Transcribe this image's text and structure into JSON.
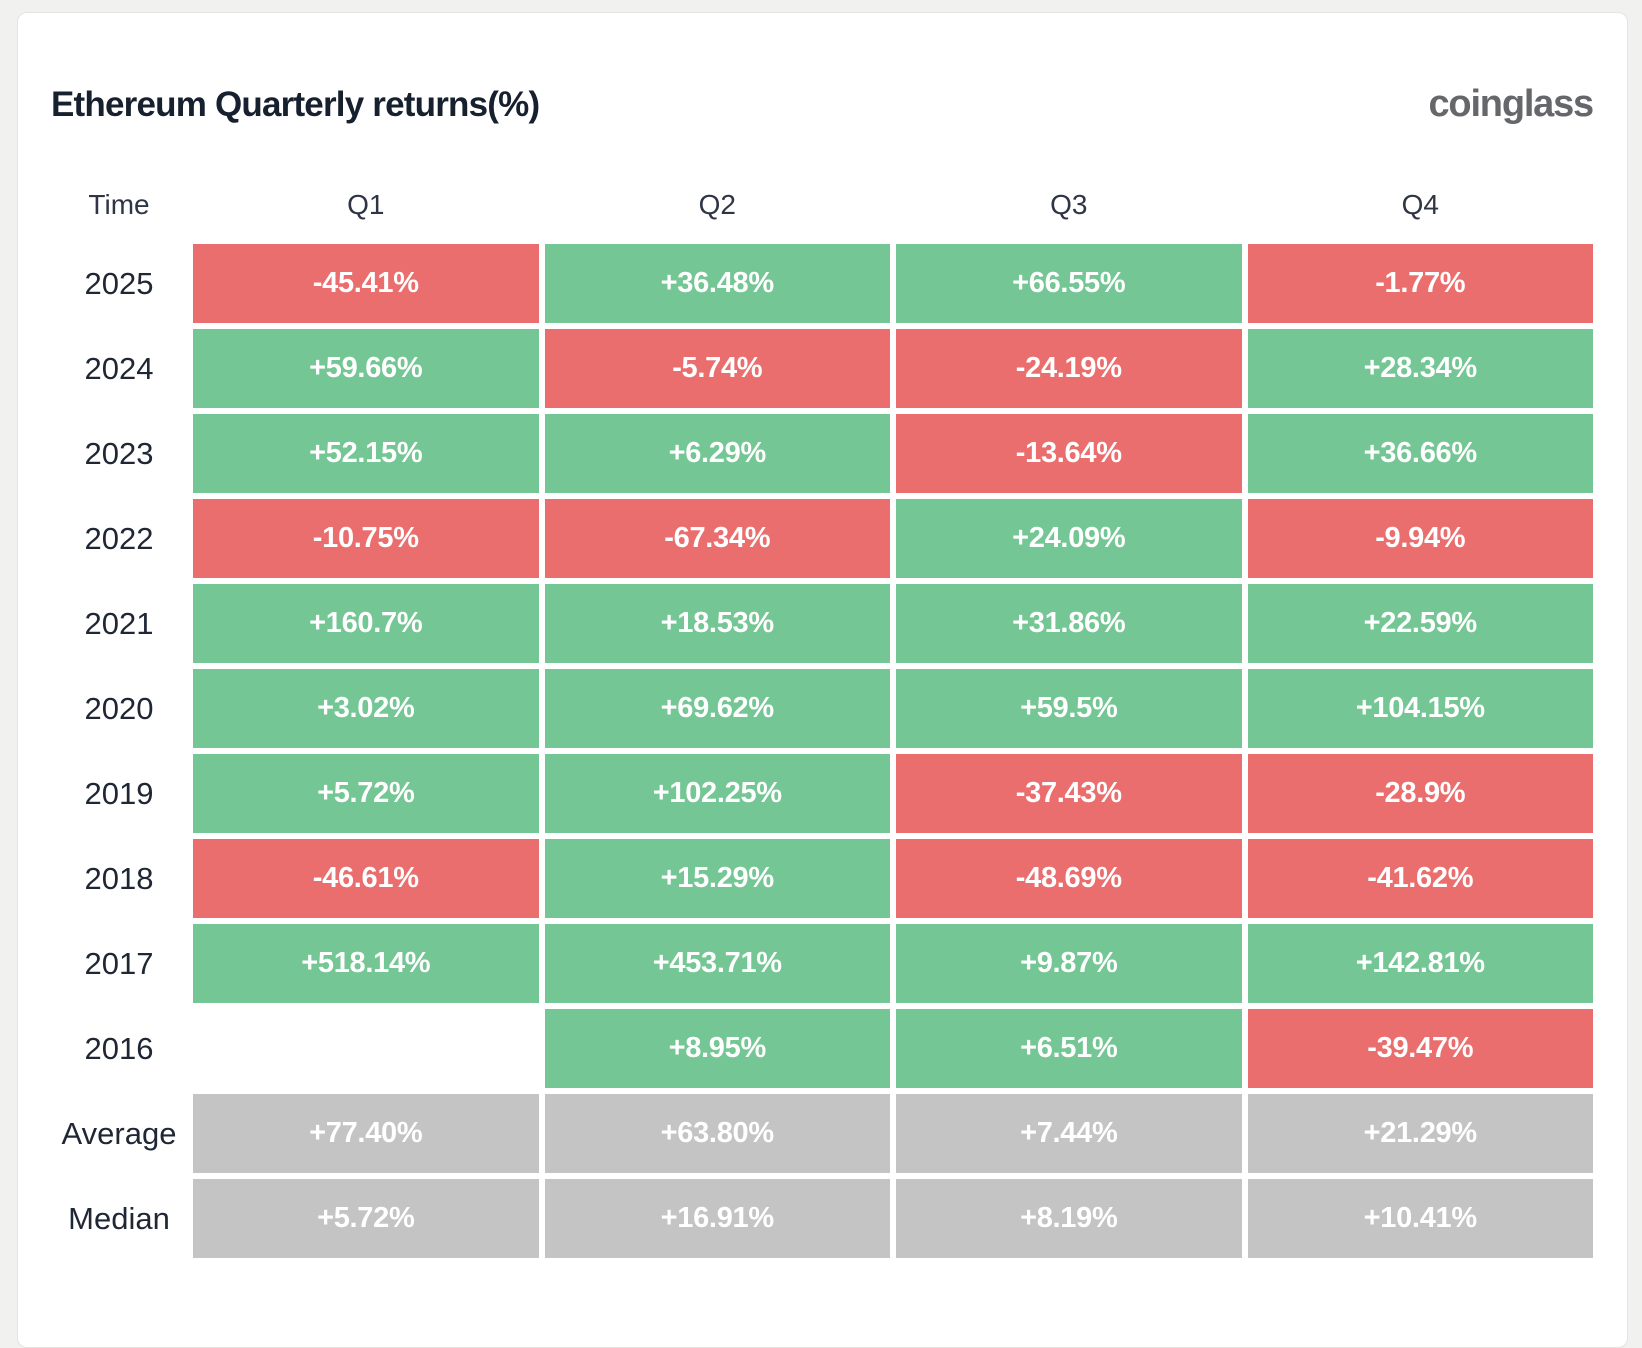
{
  "page": {
    "background": "#f1f1ef",
    "card_background": "#ffffff",
    "card_border": "#e4e4e2"
  },
  "header": {
    "title": "Ethereum Quarterly returns(%)",
    "logo_text": "coinglass"
  },
  "colors": {
    "positive": "#74c694",
    "negative": "#ea6e6e",
    "neutral": "#c4c4c4",
    "title_text": "#17202e",
    "logo_text": "#66676b",
    "cell_text": "#ffffff"
  },
  "table": {
    "columns": [
      "Time",
      "Q1",
      "Q2",
      "Q3",
      "Q4"
    ],
    "rows": [
      {
        "label": "2025",
        "cells": [
          {
            "text": "-45.41%",
            "type": "negative"
          },
          {
            "text": "+36.48%",
            "type": "positive"
          },
          {
            "text": "+66.55%",
            "type": "positive"
          },
          {
            "text": "-1.77%",
            "type": "negative"
          }
        ]
      },
      {
        "label": "2024",
        "cells": [
          {
            "text": "+59.66%",
            "type": "positive"
          },
          {
            "text": "-5.74%",
            "type": "negative"
          },
          {
            "text": "-24.19%",
            "type": "negative"
          },
          {
            "text": "+28.34%",
            "type": "positive"
          }
        ]
      },
      {
        "label": "2023",
        "cells": [
          {
            "text": "+52.15%",
            "type": "positive"
          },
          {
            "text": "+6.29%",
            "type": "positive"
          },
          {
            "text": "-13.64%",
            "type": "negative"
          },
          {
            "text": "+36.66%",
            "type": "positive"
          }
        ]
      },
      {
        "label": "2022",
        "cells": [
          {
            "text": "-10.75%",
            "type": "negative"
          },
          {
            "text": "-67.34%",
            "type": "negative"
          },
          {
            "text": "+24.09%",
            "type": "positive"
          },
          {
            "text": "-9.94%",
            "type": "negative"
          }
        ]
      },
      {
        "label": "2021",
        "cells": [
          {
            "text": "+160.7%",
            "type": "positive"
          },
          {
            "text": "+18.53%",
            "type": "positive"
          },
          {
            "text": "+31.86%",
            "type": "positive"
          },
          {
            "text": "+22.59%",
            "type": "positive"
          }
        ]
      },
      {
        "label": "2020",
        "cells": [
          {
            "text": "+3.02%",
            "type": "positive"
          },
          {
            "text": "+69.62%",
            "type": "positive"
          },
          {
            "text": "+59.5%",
            "type": "positive"
          },
          {
            "text": "+104.15%",
            "type": "positive"
          }
        ]
      },
      {
        "label": "2019",
        "cells": [
          {
            "text": "+5.72%",
            "type": "positive"
          },
          {
            "text": "+102.25%",
            "type": "positive"
          },
          {
            "text": "-37.43%",
            "type": "negative"
          },
          {
            "text": "-28.9%",
            "type": "negative"
          }
        ]
      },
      {
        "label": "2018",
        "cells": [
          {
            "text": "-46.61%",
            "type": "negative"
          },
          {
            "text": "+15.29%",
            "type": "positive"
          },
          {
            "text": "-48.69%",
            "type": "negative"
          },
          {
            "text": "-41.62%",
            "type": "negative"
          }
        ]
      },
      {
        "label": "2017",
        "cells": [
          {
            "text": "+518.14%",
            "type": "positive"
          },
          {
            "text": "+453.71%",
            "type": "positive"
          },
          {
            "text": "+9.87%",
            "type": "positive"
          },
          {
            "text": "+142.81%",
            "type": "positive"
          }
        ]
      },
      {
        "label": "2016",
        "cells": [
          {
            "text": "",
            "type": "empty"
          },
          {
            "text": "+8.95%",
            "type": "positive"
          },
          {
            "text": "+6.51%",
            "type": "positive"
          },
          {
            "text": "-39.47%",
            "type": "negative"
          }
        ]
      },
      {
        "label": "Average",
        "cells": [
          {
            "text": "+77.40%",
            "type": "neutral"
          },
          {
            "text": "+63.80%",
            "type": "neutral"
          },
          {
            "text": "+7.44%",
            "type": "neutral"
          },
          {
            "text": "+21.29%",
            "type": "neutral"
          }
        ]
      },
      {
        "label": "Median",
        "cells": [
          {
            "text": "+5.72%",
            "type": "neutral"
          },
          {
            "text": "+16.91%",
            "type": "neutral"
          },
          {
            "text": "+8.19%",
            "type": "neutral"
          },
          {
            "text": "+10.41%",
            "type": "neutral"
          }
        ]
      }
    ]
  },
  "chart_data": {
    "type": "table",
    "title": "Ethereum Quarterly returns(%)",
    "columns": [
      "Q1",
      "Q2",
      "Q3",
      "Q4"
    ],
    "row_labels": [
      "2025",
      "2024",
      "2023",
      "2022",
      "2021",
      "2020",
      "2019",
      "2018",
      "2017",
      "2016",
      "Average",
      "Median"
    ],
    "values": [
      [
        -45.41,
        36.48,
        66.55,
        -1.77
      ],
      [
        59.66,
        -5.74,
        -24.19,
        28.34
      ],
      [
        52.15,
        6.29,
        -13.64,
        36.66
      ],
      [
        -10.75,
        -67.34,
        24.09,
        -9.94
      ],
      [
        160.7,
        18.53,
        31.86,
        22.59
      ],
      [
        3.02,
        69.62,
        59.5,
        104.15
      ],
      [
        5.72,
        102.25,
        -37.43,
        -28.9
      ],
      [
        -46.61,
        15.29,
        -48.69,
        -41.62
      ],
      [
        518.14,
        453.71,
        9.87,
        142.81
      ],
      [
        null,
        8.95,
        6.51,
        -39.47
      ],
      [
        77.4,
        63.8,
        7.44,
        21.29
      ],
      [
        5.72,
        16.91,
        8.19,
        10.41
      ]
    ],
    "color_coding": "green = positive return, red = negative return, gray = summary rows (Average/Median)",
    "legend": "none",
    "grid": "off"
  }
}
